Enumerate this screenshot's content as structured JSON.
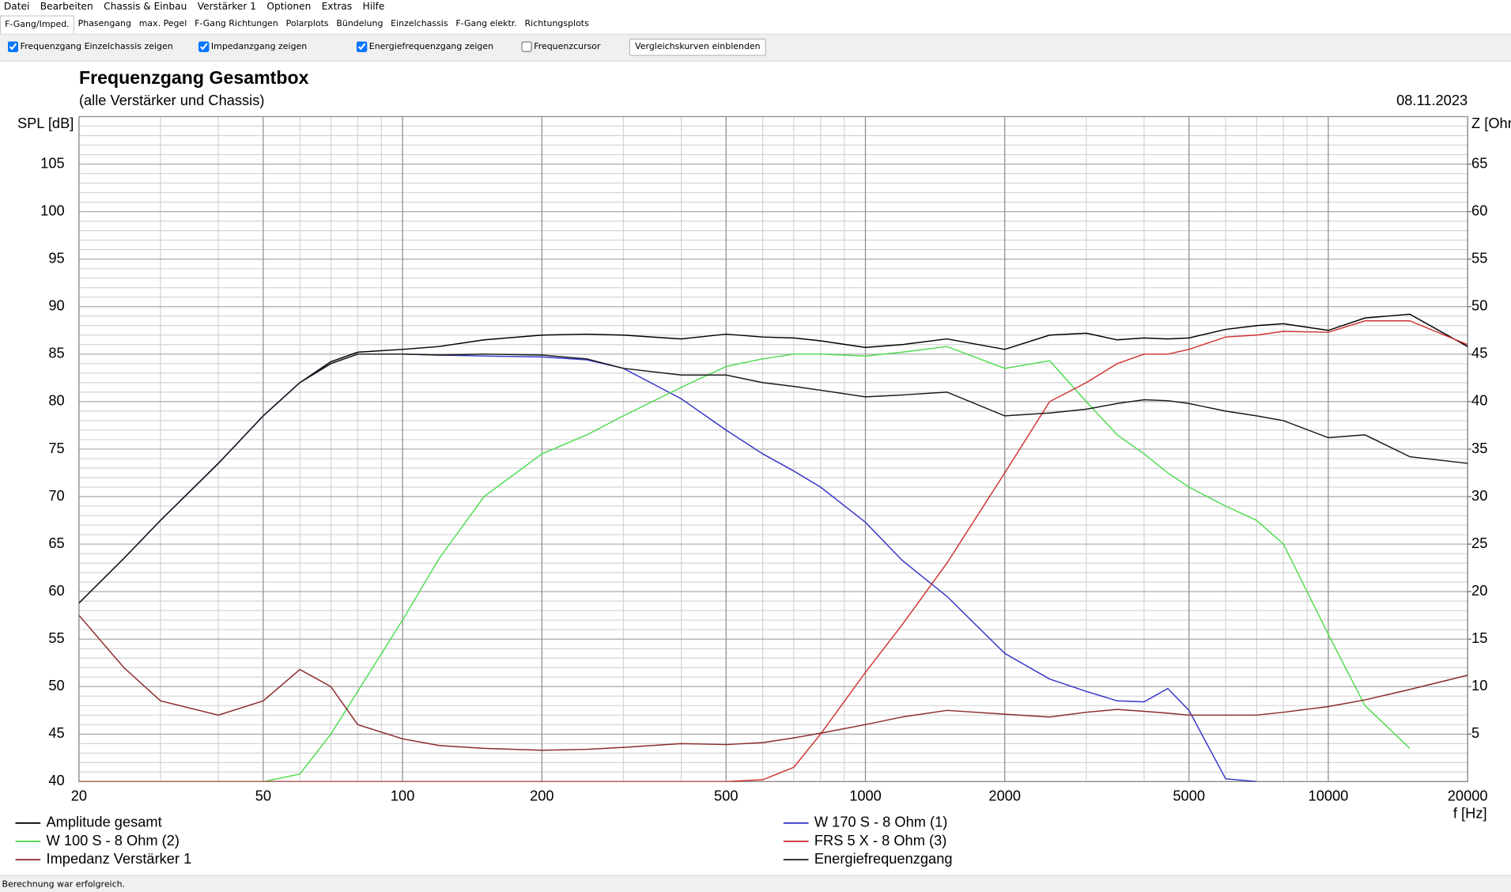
{
  "menu": [
    "Datei",
    "Bearbeiten",
    "Chassis & Einbau",
    "Verstärker 1",
    "Optionen",
    "Extras",
    "Hilfe"
  ],
  "tabs": [
    "F-Gang/Imped.",
    "Phasengang",
    "max. Pegel",
    "F-Gang Richtungen",
    "Polarplots",
    "Bündelung",
    "Einzelchassis",
    "F-Gang elektr.",
    "Richtungsplots"
  ],
  "toolbar": {
    "checkboxes": [
      {
        "label": "Frequenzgang Einzelchassis zeigen",
        "checked": true
      },
      {
        "label": "Impedanzgang zeigen",
        "checked": true
      },
      {
        "label": "Energiefrequenzgang zeigen",
        "checked": true
      },
      {
        "label": "Frequenzcursor",
        "checked": false
      }
    ],
    "button": "Vergleichskurven einblenden"
  },
  "status": "Berechnung war erfolgreich.",
  "chart_data": {
    "type": "line",
    "title": "Frequenzgang Gesamtbox",
    "subtitle": "(alle Verstärker und Chassis)",
    "date": "08.11.2023",
    "y_label": "SPL [dB]",
    "y2_label": "Z [Ohm]",
    "x_label": "f [Hz]",
    "x_log": true,
    "grid": true,
    "xlim": [
      20,
      20000
    ],
    "xticks": [
      20,
      50,
      100,
      200,
      500,
      1000,
      2000,
      5000,
      10000,
      20000
    ],
    "ylim": [
      40,
      110
    ],
    "yticks": [
      40,
      45,
      50,
      55,
      60,
      65,
      70,
      75,
      80,
      85,
      90,
      95,
      100,
      105
    ],
    "y2lim": [
      0,
      70
    ],
    "y2ticks": [
      5,
      10,
      15,
      20,
      25,
      30,
      35,
      40,
      45,
      50,
      55,
      60,
      65
    ],
    "x": [
      20,
      25,
      30,
      40,
      50,
      60,
      70,
      80,
      100,
      120,
      150,
      200,
      250,
      300,
      400,
      500,
      600,
      700,
      800,
      1000,
      1200,
      1500,
      2000,
      2500,
      3000,
      3500,
      4000,
      4500,
      5000,
      6000,
      7000,
      8000,
      10000,
      12000,
      15000,
      20000
    ],
    "series": [
      {
        "name": "Amplitude gesamt",
        "color": "#000000",
        "values": [
          58.8,
          63.5,
          67.5,
          73.5,
          78.5,
          82,
          84.2,
          85.2,
          85.5,
          85.8,
          86.5,
          87,
          87.1,
          87,
          86.6,
          87.1,
          86.8,
          86.7,
          86.4,
          85.7,
          86,
          86.6,
          85.5,
          87,
          87.2,
          86.5,
          86.7,
          86.6,
          86.7,
          87.6,
          88,
          88.2,
          87.5,
          88.8,
          89.2,
          85.8
        ]
      },
      {
        "name": "W 170 S - 8 Ohm (1)",
        "color": "#3636c8",
        "values": [
          58.8,
          63.5,
          67.5,
          73.5,
          78.5,
          82,
          84,
          85,
          85,
          84.9,
          84.8,
          84.7,
          84.4,
          83.5,
          80.3,
          77,
          74.5,
          72.7,
          71,
          67.3,
          63.3,
          59.5,
          53.5,
          50.8,
          49.5,
          48.5,
          48.4,
          49.8,
          47.5,
          40.3,
          40,
          null,
          null,
          null,
          null,
          null
        ]
      },
      {
        "name": "W 100 S - 8 Ohm (2)",
        "color": "#50dc50",
        "values": [
          40,
          40,
          40,
          40,
          40,
          40.8,
          45,
          49.5,
          57,
          63.5,
          70,
          74.5,
          76.5,
          78.5,
          81.5,
          83.7,
          84.5,
          85,
          85,
          84.8,
          85.2,
          85.8,
          83.5,
          84.3,
          80,
          76.5,
          74.5,
          72.5,
          71,
          69,
          67.5,
          65,
          55.5,
          48,
          43.5,
          null
        ]
      },
      {
        "name": "FRS 5 X - 8 Ohm (3)",
        "color": "#d03232",
        "values": [
          40,
          40,
          40,
          40,
          40,
          40,
          40,
          40,
          40,
          40,
          40,
          40,
          40,
          40,
          40,
          40,
          40.2,
          41.5,
          45,
          51.5,
          56.5,
          63,
          72.5,
          80,
          82,
          84,
          85,
          85,
          85.5,
          86.8,
          87,
          87.4,
          87.3,
          88.5,
          88.5,
          86
        ]
      },
      {
        "name": "Impedanz Verstärker 1",
        "color": "#8b2a2a",
        "axis": "y2",
        "values": [
          17.5,
          12,
          8.5,
          7,
          8.5,
          11.8,
          10,
          6,
          4.5,
          3.8,
          3.5,
          3.3,
          3.4,
          3.6,
          4,
          3.9,
          4.1,
          4.6,
          5.1,
          6,
          6.8,
          7.5,
          7.1,
          6.8,
          7.3,
          7.6,
          7.4,
          7.2,
          7,
          7,
          7,
          7.3,
          7.9,
          8.6,
          9.7,
          11.2
        ]
      },
      {
        "name": "Energiefrequenzgang",
        "color": "#1a1a1a",
        "values": [
          58.8,
          63.5,
          67.5,
          73.5,
          78.5,
          82,
          84,
          85,
          85,
          84.9,
          85,
          84.9,
          84.5,
          83.5,
          82.8,
          82.8,
          82,
          81.6,
          81.2,
          80.5,
          80.7,
          81,
          78.5,
          78.8,
          79.2,
          79.8,
          80.2,
          80.1,
          79.8,
          79,
          78.5,
          78,
          76.2,
          76.5,
          74.2,
          73.5
        ]
      }
    ]
  }
}
